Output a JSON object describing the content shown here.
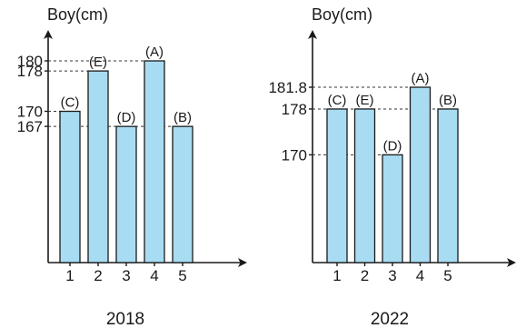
{
  "colors": {
    "bar_fill": "#a8dcf3",
    "axis": "#1a1a1a"
  },
  "chart_data": [
    {
      "type": "bar",
      "title": "2018",
      "ylabel": "Boy(cm)",
      "xlabel": "",
      "categories": [
        "1",
        "2",
        "3",
        "4",
        "5"
      ],
      "bar_labels": [
        "(C)",
        "(E)",
        "(D)",
        "(A)",
        "(B)"
      ],
      "values": [
        170,
        178,
        167,
        180,
        167
      ],
      "yticks": [
        "167",
        "170",
        "178",
        "180"
      ],
      "ytick_values": [
        167,
        170,
        178,
        180
      ],
      "ylim": [
        140,
        180
      ],
      "grid": false
    },
    {
      "type": "bar",
      "title": "2022",
      "ylabel": "Boy(cm)",
      "xlabel": "",
      "categories": [
        "1",
        "2",
        "3",
        "4",
        "5"
      ],
      "bar_labels": [
        "(C)",
        "(E)",
        "(D)",
        "(A)",
        "(B)"
      ],
      "values": [
        178,
        178,
        170,
        181.8,
        178
      ],
      "yticks": [
        "170",
        "178",
        "181.8"
      ],
      "ytick_values": [
        170,
        178,
        181.8
      ],
      "ylim": [
        151.2,
        181.8
      ],
      "grid": false
    }
  ]
}
